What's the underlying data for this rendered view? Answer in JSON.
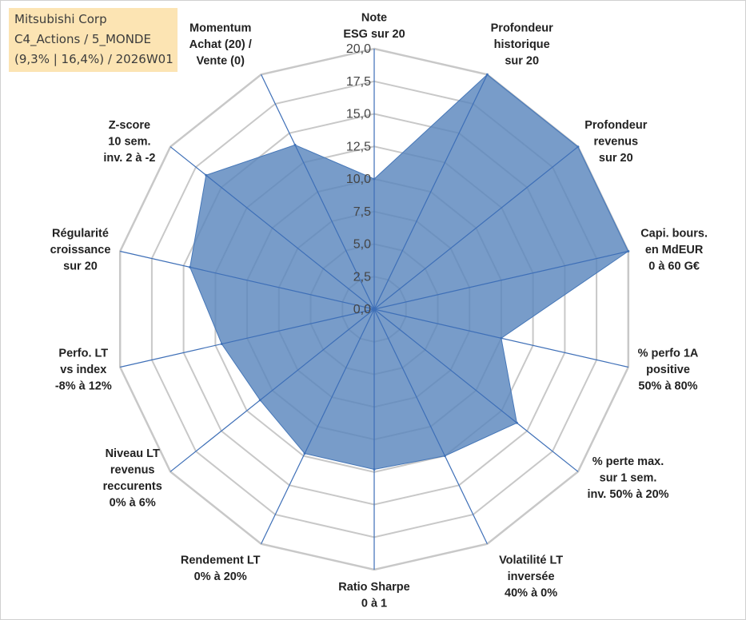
{
  "info_box": {
    "line1": "Mitsubishi Corp",
    "line2": "C4_Actions / 5_MONDE",
    "line3": "(9,3% | 16,4%) / 2026W01"
  },
  "colors": {
    "fill": "#5a86bd",
    "stroke": "#4677b8",
    "grid": "#c8c8c8",
    "spoke": "#3e6fb7",
    "info_bg": "#fce4b3"
  },
  "chart_data": {
    "type": "radar",
    "title": "",
    "rmax": 20,
    "ticks": [
      "0,0",
      "2,5",
      "5,0",
      "7,5",
      "10,0",
      "12,5",
      "15,0",
      "17,5",
      "20,0"
    ],
    "axes": [
      {
        "label": [
          "Note",
          "ESG sur 20"
        ],
        "value": 10.0
      },
      {
        "label": [
          "Profondeur",
          "historique",
          "sur 20"
        ],
        "value": 20.0
      },
      {
        "label": [
          "Profondeur",
          "revenus",
          "sur 20"
        ],
        "value": 20.0
      },
      {
        "label": [
          "Capi. bours.",
          "en MdEUR",
          "0 à 60 G€"
        ],
        "value": 20.0
      },
      {
        "label": [
          "% perfo 1A",
          "positive",
          "50% à 80%"
        ],
        "value": 10.0
      },
      {
        "label": [
          "% perte max.",
          "sur 1 sem.",
          "inv. 50% à 20%"
        ],
        "value": 14.0
      },
      {
        "label": [
          "Volatilité LT",
          "inversée",
          "40% à 0%"
        ],
        "value": 12.5
      },
      {
        "label": [
          "Ratio Sharpe",
          "0 à 1"
        ],
        "value": 12.3
      },
      {
        "label": [
          "Rendement LT",
          "0% à 20%"
        ],
        "value": 12.3
      },
      {
        "label": [
          "Niveau LT",
          "revenus",
          "reccurents",
          "0% à 6%"
        ],
        "value": 11.2
      },
      {
        "label": [
          "Perfo. LT",
          "vs index",
          "-8% à 12%"
        ],
        "value": 12.0
      },
      {
        "label": [
          "Régularité",
          "croissance",
          "sur 20"
        ],
        "value": 14.5
      },
      {
        "label": [
          "Z-score",
          "10 sem.",
          "inv. 2 à -2"
        ],
        "value": 16.5
      },
      {
        "label": [
          "Momentum",
          "Achat (20) /",
          "Vente (0)"
        ],
        "value": 14.0
      }
    ]
  }
}
